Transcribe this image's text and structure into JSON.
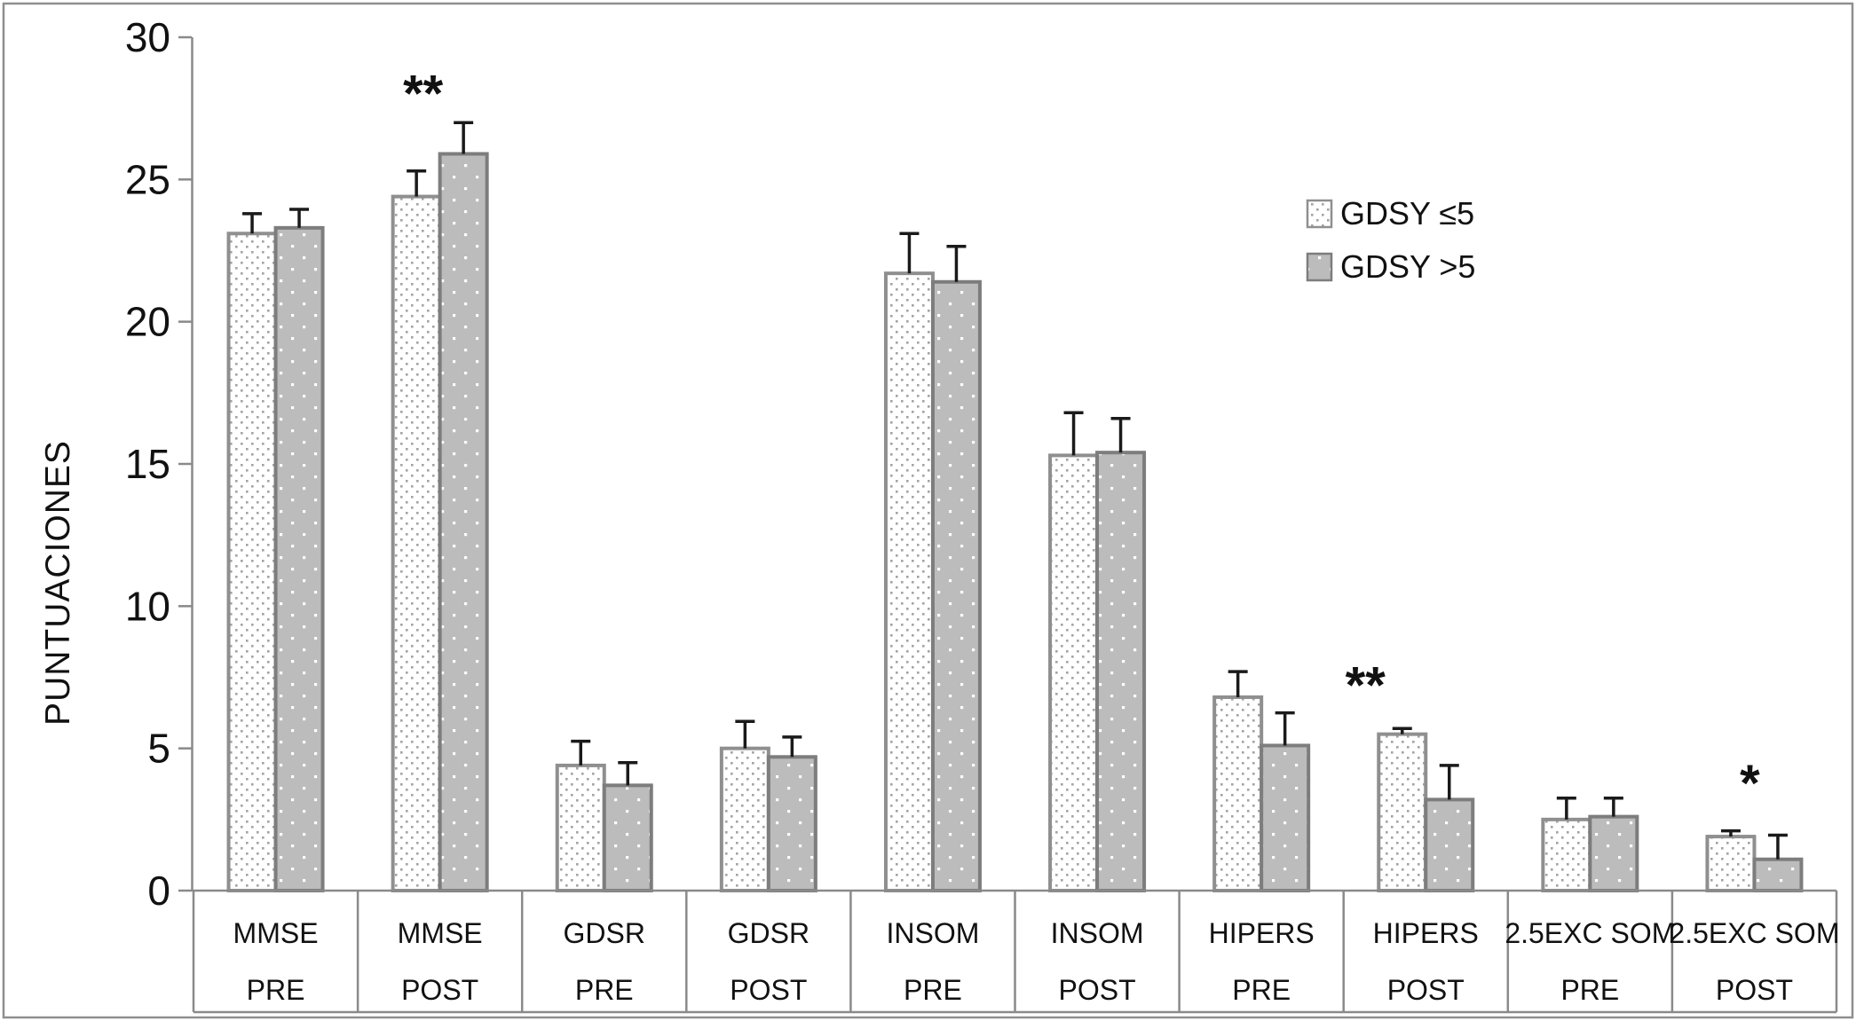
{
  "chart_data": {
    "type": "bar",
    "title": "",
    "xlabel": "",
    "ylabel": "PUNTUACIONES",
    "ylim": [
      0,
      30
    ],
    "ytick_step": 5,
    "grid": false,
    "legend_position": "upper-right-inside",
    "categories": [
      {
        "test": "MMSE",
        "phase": "PRE"
      },
      {
        "test": "MMSE",
        "phase": "POST"
      },
      {
        "test": "GDSR",
        "phase": "PRE"
      },
      {
        "test": "GDSR",
        "phase": "POST"
      },
      {
        "test": "INSOM",
        "phase": "PRE"
      },
      {
        "test": "INSOM",
        "phase": "POST"
      },
      {
        "test": "HIPERS",
        "phase": "PRE"
      },
      {
        "test": "HIPERS",
        "phase": "POST"
      },
      {
        "test": "2.5EXC SOM",
        "phase": "PRE"
      },
      {
        "test": "2.5EXC SOM",
        "phase": "POST"
      }
    ],
    "series": [
      {
        "name": "GDSY ≤5",
        "style": "white-with-gray-dots",
        "values": [
          23.1,
          24.4,
          4.4,
          5.0,
          21.7,
          15.3,
          6.8,
          5.5,
          2.5,
          1.9
        ],
        "errors": [
          0.7,
          0.9,
          0.85,
          0.95,
          1.4,
          1.5,
          0.9,
          0.2,
          0.75,
          0.2
        ]
      },
      {
        "name": "GDSY >5",
        "style": "gray-with-white-dots",
        "values": [
          23.3,
          25.9,
          3.7,
          4.7,
          21.4,
          15.4,
          5.1,
          3.2,
          2.6,
          1.1
        ],
        "errors": [
          0.65,
          1.1,
          0.8,
          0.7,
          1.25,
          1.2,
          1.15,
          1.2,
          0.65,
          0.85
        ]
      }
    ],
    "significance": [
      {
        "category_index": 1,
        "label": "**",
        "dx": -19,
        "y_value": 27.4
      },
      {
        "category_index": 7,
        "label": "**",
        "dx": -68,
        "y_value": 6.6
      },
      {
        "category_index": 9,
        "label": "*",
        "dx": -5,
        "y_value": 3.15
      }
    ]
  },
  "colors": {
    "background": "#ffffff",
    "frame": "#8f8f8f",
    "axis": "#8a8a8a",
    "text": "#111111",
    "error_bar": "#1a1a1a",
    "series1_dot": "#a3a3a3",
    "series1_border": "#8f8f8f",
    "series2_fill": "#bcbcbc",
    "series2_dot": "#ffffff",
    "series2_border": "#7d7d7d"
  }
}
